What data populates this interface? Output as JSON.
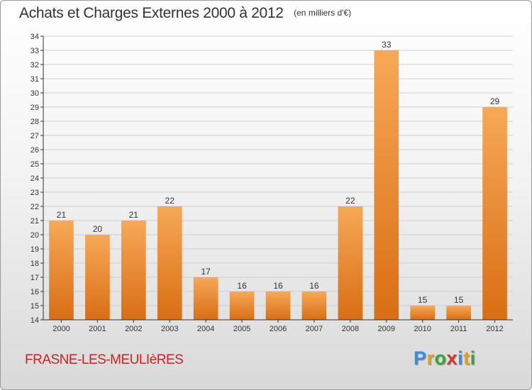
{
  "header": {
    "title": "Achats et Charges Externes 2000 à 2012",
    "subtitle": "(en milliers d'€)"
  },
  "footer": {
    "commune": "FRASNE-LES-MEULIèRES",
    "logo": {
      "letters": [
        "P",
        "r",
        "o",
        "x",
        "i",
        "t",
        "i"
      ],
      "colors": [
        "#3a8fd6",
        "#e0a020",
        "#3aa53a",
        "#d03a2a",
        "#3a8fd6",
        "#e0a020",
        "#3aa53a"
      ]
    }
  },
  "colors": {
    "bar_light": "#f7a857",
    "bar_dark": "#d96e14",
    "grid": "#cfcfcf",
    "axis": "#333333"
  },
  "chart_data": {
    "type": "bar",
    "title": "Achats et Charges Externes 2000 à 2012",
    "subtitle": "(en milliers d'€)",
    "categories": [
      "2000",
      "2001",
      "2002",
      "2003",
      "2004",
      "2005",
      "2006",
      "2007",
      "2008",
      "2009",
      "2010",
      "2011",
      "2012"
    ],
    "values": [
      21,
      20,
      21,
      22,
      17,
      16,
      16,
      16,
      22,
      33,
      15,
      15,
      29
    ],
    "ylim": [
      14,
      34
    ],
    "yticks": [
      14,
      15,
      16,
      17,
      18,
      19,
      20,
      21,
      22,
      23,
      24,
      25,
      26,
      27,
      28,
      29,
      30,
      31,
      32,
      33,
      34
    ],
    "grid": true,
    "legend": false,
    "xlabel": "",
    "ylabel": ""
  }
}
